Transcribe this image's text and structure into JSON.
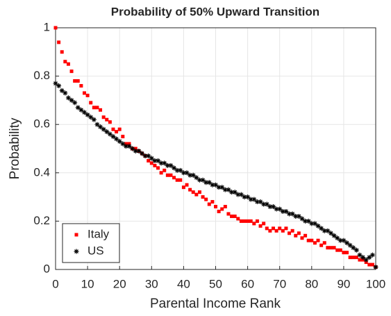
{
  "chart_data": {
    "type": "scatter",
    "title": "Probability of 50% Upward Transition",
    "x_label": "Parental Income Rank",
    "y_label": "Probability",
    "x": [
      0,
      1,
      2,
      3,
      4,
      5,
      6,
      7,
      8,
      9,
      10,
      11,
      12,
      13,
      14,
      15,
      16,
      17,
      18,
      19,
      20,
      21,
      22,
      23,
      24,
      25,
      26,
      27,
      28,
      29,
      30,
      31,
      32,
      33,
      34,
      35,
      36,
      37,
      38,
      39,
      40,
      41,
      42,
      43,
      44,
      45,
      46,
      47,
      48,
      49,
      50,
      51,
      52,
      53,
      54,
      55,
      56,
      57,
      58,
      59,
      60,
      61,
      62,
      63,
      64,
      65,
      66,
      67,
      68,
      69,
      70,
      71,
      72,
      73,
      74,
      75,
      76,
      77,
      78,
      79,
      80,
      81,
      82,
      83,
      84,
      85,
      86,
      87,
      88,
      89,
      90,
      91,
      92,
      93,
      94,
      95,
      96,
      97,
      98,
      99,
      100
    ],
    "series": [
      {
        "name": "Italy",
        "color": "#ff0000",
        "marker": "square",
        "values": [
          1.0,
          0.94,
          0.9,
          0.86,
          0.85,
          0.82,
          0.78,
          0.78,
          0.76,
          0.73,
          0.72,
          0.69,
          0.67,
          0.67,
          0.66,
          0.63,
          0.62,
          0.61,
          0.58,
          0.57,
          0.58,
          0.55,
          0.52,
          0.52,
          0.5,
          0.5,
          0.49,
          0.48,
          0.47,
          0.45,
          0.44,
          0.43,
          0.42,
          0.4,
          0.41,
          0.39,
          0.39,
          0.38,
          0.37,
          0.37,
          0.34,
          0.35,
          0.33,
          0.32,
          0.31,
          0.32,
          0.3,
          0.29,
          0.27,
          0.28,
          0.26,
          0.24,
          0.25,
          0.26,
          0.23,
          0.22,
          0.22,
          0.21,
          0.2,
          0.2,
          0.2,
          0.2,
          0.19,
          0.2,
          0.18,
          0.19,
          0.17,
          0.16,
          0.17,
          0.16,
          0.17,
          0.16,
          0.17,
          0.15,
          0.16,
          0.14,
          0.15,
          0.13,
          0.14,
          0.12,
          0.12,
          0.11,
          0.12,
          0.1,
          0.11,
          0.09,
          0.09,
          0.09,
          0.08,
          0.08,
          0.07,
          0.07,
          0.05,
          0.05,
          0.05,
          0.04,
          0.04,
          0.03,
          0.02,
          0.02,
          0.01
        ]
      },
      {
        "name": "US",
        "color": "#000000",
        "marker": "asterisk",
        "values": [
          0.77,
          0.76,
          0.74,
          0.73,
          0.71,
          0.7,
          0.69,
          0.67,
          0.66,
          0.65,
          0.64,
          0.63,
          0.62,
          0.6,
          0.59,
          0.58,
          0.57,
          0.56,
          0.55,
          0.54,
          0.53,
          0.52,
          0.51,
          0.51,
          0.5,
          0.49,
          0.49,
          0.48,
          0.47,
          0.47,
          0.46,
          0.45,
          0.45,
          0.44,
          0.44,
          0.43,
          0.43,
          0.42,
          0.41,
          0.41,
          0.4,
          0.4,
          0.39,
          0.39,
          0.38,
          0.37,
          0.37,
          0.36,
          0.36,
          0.35,
          0.35,
          0.34,
          0.34,
          0.33,
          0.33,
          0.32,
          0.32,
          0.31,
          0.31,
          0.3,
          0.3,
          0.29,
          0.29,
          0.28,
          0.28,
          0.27,
          0.27,
          0.26,
          0.26,
          0.25,
          0.25,
          0.24,
          0.24,
          0.23,
          0.23,
          0.22,
          0.22,
          0.21,
          0.2,
          0.2,
          0.19,
          0.19,
          0.18,
          0.17,
          0.16,
          0.16,
          0.15,
          0.14,
          0.13,
          0.12,
          0.12,
          0.11,
          0.1,
          0.09,
          0.08,
          0.06,
          0.05,
          0.04,
          0.05,
          0.06,
          0.01
        ]
      }
    ],
    "xlim": [
      0,
      100
    ],
    "xticks": [
      0,
      10,
      20,
      30,
      40,
      50,
      60,
      70,
      80,
      90,
      100
    ],
    "ylim": [
      0,
      1
    ],
    "yticks": [
      0,
      0.2,
      0.4,
      0.6,
      0.8,
      1
    ],
    "grid": true,
    "legend": "lower left"
  }
}
